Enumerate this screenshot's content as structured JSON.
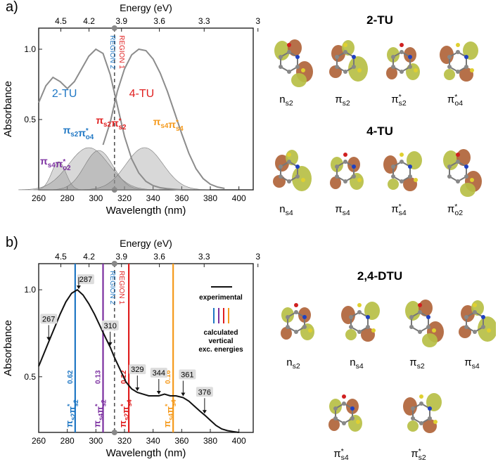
{
  "chart_data": [
    {
      "panel_label": "a)",
      "type": "line",
      "xlabel": "Wavelength (nm)",
      "ylabel": "Absorbance",
      "top_axis_label": "Energy (eV)",
      "xlim": [
        260,
        410
      ],
      "ylim": [
        0,
        1.15
      ],
      "x_ticks": [
        260,
        280,
        300,
        320,
        340,
        360,
        380,
        400
      ],
      "y_ticks": [
        {
          "value": 0.5,
          "label": "0.5"
        },
        {
          "value": 1.0,
          "label": "1.0"
        }
      ],
      "energy_ticks": [
        {
          "label": "4.5",
          "wavelength": 275.5
        },
        {
          "label": "4.2",
          "wavelength": 295.2
        },
        {
          "label": "3.9",
          "wavelength": 317.9
        },
        {
          "label": "3.6",
          "wavelength": 344.4
        },
        {
          "label": "3.3",
          "wavelength": 375.7
        },
        {
          "label": "3",
          "wavelength": 413.3
        }
      ],
      "divider_wavelength": 313,
      "region_labels": [
        {
          "text": "REGION 2",
          "color": "#1f77c4"
        },
        {
          "text": "REGION 1",
          "color": "#e02020"
        }
      ],
      "series": [
        {
          "name": "2-TU",
          "color": "#1f77c4",
          "x": [
            260,
            265,
            270,
            275,
            280,
            285,
            290,
            295,
            300,
            305,
            310,
            315,
            320,
            325,
            330,
            335,
            340,
            345,
            350,
            355,
            360
          ],
          "y": [
            0.62,
            0.74,
            0.8,
            0.77,
            0.72,
            0.77,
            0.86,
            0.95,
            1.0,
            0.97,
            0.82,
            0.6,
            0.38,
            0.22,
            0.12,
            0.06,
            0.03,
            0.015,
            0.008,
            0.004,
            0.0
          ]
        },
        {
          "name": "4-TU",
          "color": "#e02020",
          "x": [
            305,
            310,
            315,
            320,
            325,
            330,
            335,
            340,
            345,
            350,
            355,
            360,
            365,
            370,
            375,
            380,
            385,
            390
          ],
          "y": [
            0.32,
            0.48,
            0.7,
            0.86,
            0.96,
            1.0,
            0.99,
            0.93,
            0.83,
            0.7,
            0.55,
            0.4,
            0.26,
            0.15,
            0.08,
            0.04,
            0.02,
            0.01
          ]
        }
      ],
      "bands": [
        {
          "center": 274,
          "width": 5,
          "height": 0.2
        },
        {
          "center": 295,
          "width": 14,
          "height": 0.3
        },
        {
          "center": 302,
          "width": 10,
          "height": 0.28
        },
        {
          "center": 334,
          "width": 13,
          "height": 0.3
        }
      ],
      "annotations": [
        {
          "text": "2-TU",
          "color": "#1f77c4",
          "x": 278,
          "y": 0.66
        },
        {
          "text": "4-TU",
          "color": "#e02020",
          "x": 332,
          "y": 0.66
        },
        {
          "text": "πs2π*s2",
          "color": "#e02020",
          "x": 300,
          "y": 0.47
        },
        {
          "text": "πs2π*o4",
          "color": "#1f77c4",
          "x": 277,
          "y": 0.4
        },
        {
          "text": "πs4π*s4",
          "color": "#f59a1c",
          "x": 340,
          "y": 0.46
        },
        {
          "text": "πs4π*o2",
          "color": "#7b2fa0",
          "x": 261,
          "y": 0.18
        }
      ]
    },
    {
      "panel_label": "b)",
      "type": "line",
      "xlabel": "Wavelength (nm)",
      "ylabel": "Absorbance",
      "top_axis_label": "Energy (eV)",
      "xlim": [
        260,
        410
      ],
      "ylim": [
        0.18,
        1.15
      ],
      "x_ticks": [
        260,
        280,
        300,
        320,
        340,
        360,
        380,
        400
      ],
      "y_ticks": [
        {
          "value": 0.5,
          "label": "0.5"
        },
        {
          "value": 1.0,
          "label": "1.0"
        }
      ],
      "energy_ticks": [
        {
          "label": "4.5",
          "wavelength": 275.5
        },
        {
          "label": "4.2",
          "wavelength": 295.2
        },
        {
          "label": "3.9",
          "wavelength": 317.9
        },
        {
          "label": "3.6",
          "wavelength": 344.4
        },
        {
          "label": "3.3",
          "wavelength": 375.7
        },
        {
          "label": "3",
          "wavelength": 413.3
        }
      ],
      "divider_wavelength": 313,
      "region_labels": [
        {
          "text": "REGION 2",
          "color": "#1f77c4"
        },
        {
          "text": "REGION 1",
          "color": "#e02020"
        }
      ],
      "series": [
        {
          "name": "experimental",
          "color": "#111111",
          "x": [
            260,
            263,
            267,
            271,
            275,
            279,
            283,
            287,
            291,
            295,
            299,
            303,
            307,
            310,
            313,
            317,
            321,
            325,
            329,
            333,
            337,
            341,
            344,
            348,
            352,
            356,
            361,
            365,
            369,
            373,
            376,
            380,
            384,
            388,
            392,
            396,
            400
          ],
          "y": [
            0.56,
            0.62,
            0.7,
            0.78,
            0.86,
            0.93,
            0.98,
            1.0,
            0.97,
            0.92,
            0.86,
            0.79,
            0.72,
            0.67,
            0.61,
            0.54,
            0.47,
            0.43,
            0.41,
            0.4,
            0.39,
            0.39,
            0.39,
            0.4,
            0.39,
            0.39,
            0.38,
            0.36,
            0.33,
            0.3,
            0.28,
            0.25,
            0.22,
            0.2,
            0.19,
            0.185,
            0.18
          ]
        }
      ],
      "peak_markers": [
        {
          "label": "267",
          "x": 267,
          "y": 0.7
        },
        {
          "label": "287",
          "x": 287,
          "y": 1.0
        },
        {
          "label": "310",
          "x": 310,
          "y": 0.67
        },
        {
          "label": "329",
          "x": 329,
          "y": 0.41
        },
        {
          "label": "344",
          "x": 344,
          "y": 0.39
        },
        {
          "label": "361",
          "x": 361,
          "y": 0.38
        },
        {
          "label": "376",
          "x": 376,
          "y": 0.28
        }
      ],
      "transitions": [
        {
          "label": "πs2π*s2",
          "wavelength": 285.5,
          "osc": "0.62",
          "color": "#1f77c4"
        },
        {
          "label": "πs4π*s2",
          "wavelength": 305,
          "osc": "0.13",
          "color": "#7b2fa0"
        },
        {
          "label": "πs2π*s4",
          "wavelength": 323,
          "osc": "0.22",
          "color": "#e02020"
        },
        {
          "label": "πs4π*s4",
          "wavelength": 354,
          "osc": "0.16",
          "color": "#f59a1c"
        }
      ],
      "legend": {
        "experimental": "experimental",
        "calculated_line1": "calculated",
        "calculated_line2": "vertical",
        "calculated_line3": "exc. energies",
        "colors": [
          "#1f77c4",
          "#7b2fa0",
          "#e02020",
          "#f59a1c"
        ]
      }
    }
  ],
  "orbitals": {
    "tu2": {
      "title": "2-TU",
      "labels": [
        "ns2",
        "πs2",
        "π*s2",
        "π*o4"
      ]
    },
    "tu4": {
      "title": "4-TU",
      "labels": [
        "ns4",
        "πs4",
        "π*s4",
        "π*o2"
      ]
    },
    "dtu": {
      "title": "2,4-DTU",
      "labels": [
        "ns2",
        "ns4",
        "πs2",
        "πs4",
        "π*s4",
        "π*s2"
      ]
    }
  },
  "colors": {
    "lobe_brown": "#b0643a",
    "lobe_green": "#b7bf45",
    "axis": "#222222",
    "grey_curve": "#8c8c8c",
    "band_fill": "#8f8f8f"
  }
}
